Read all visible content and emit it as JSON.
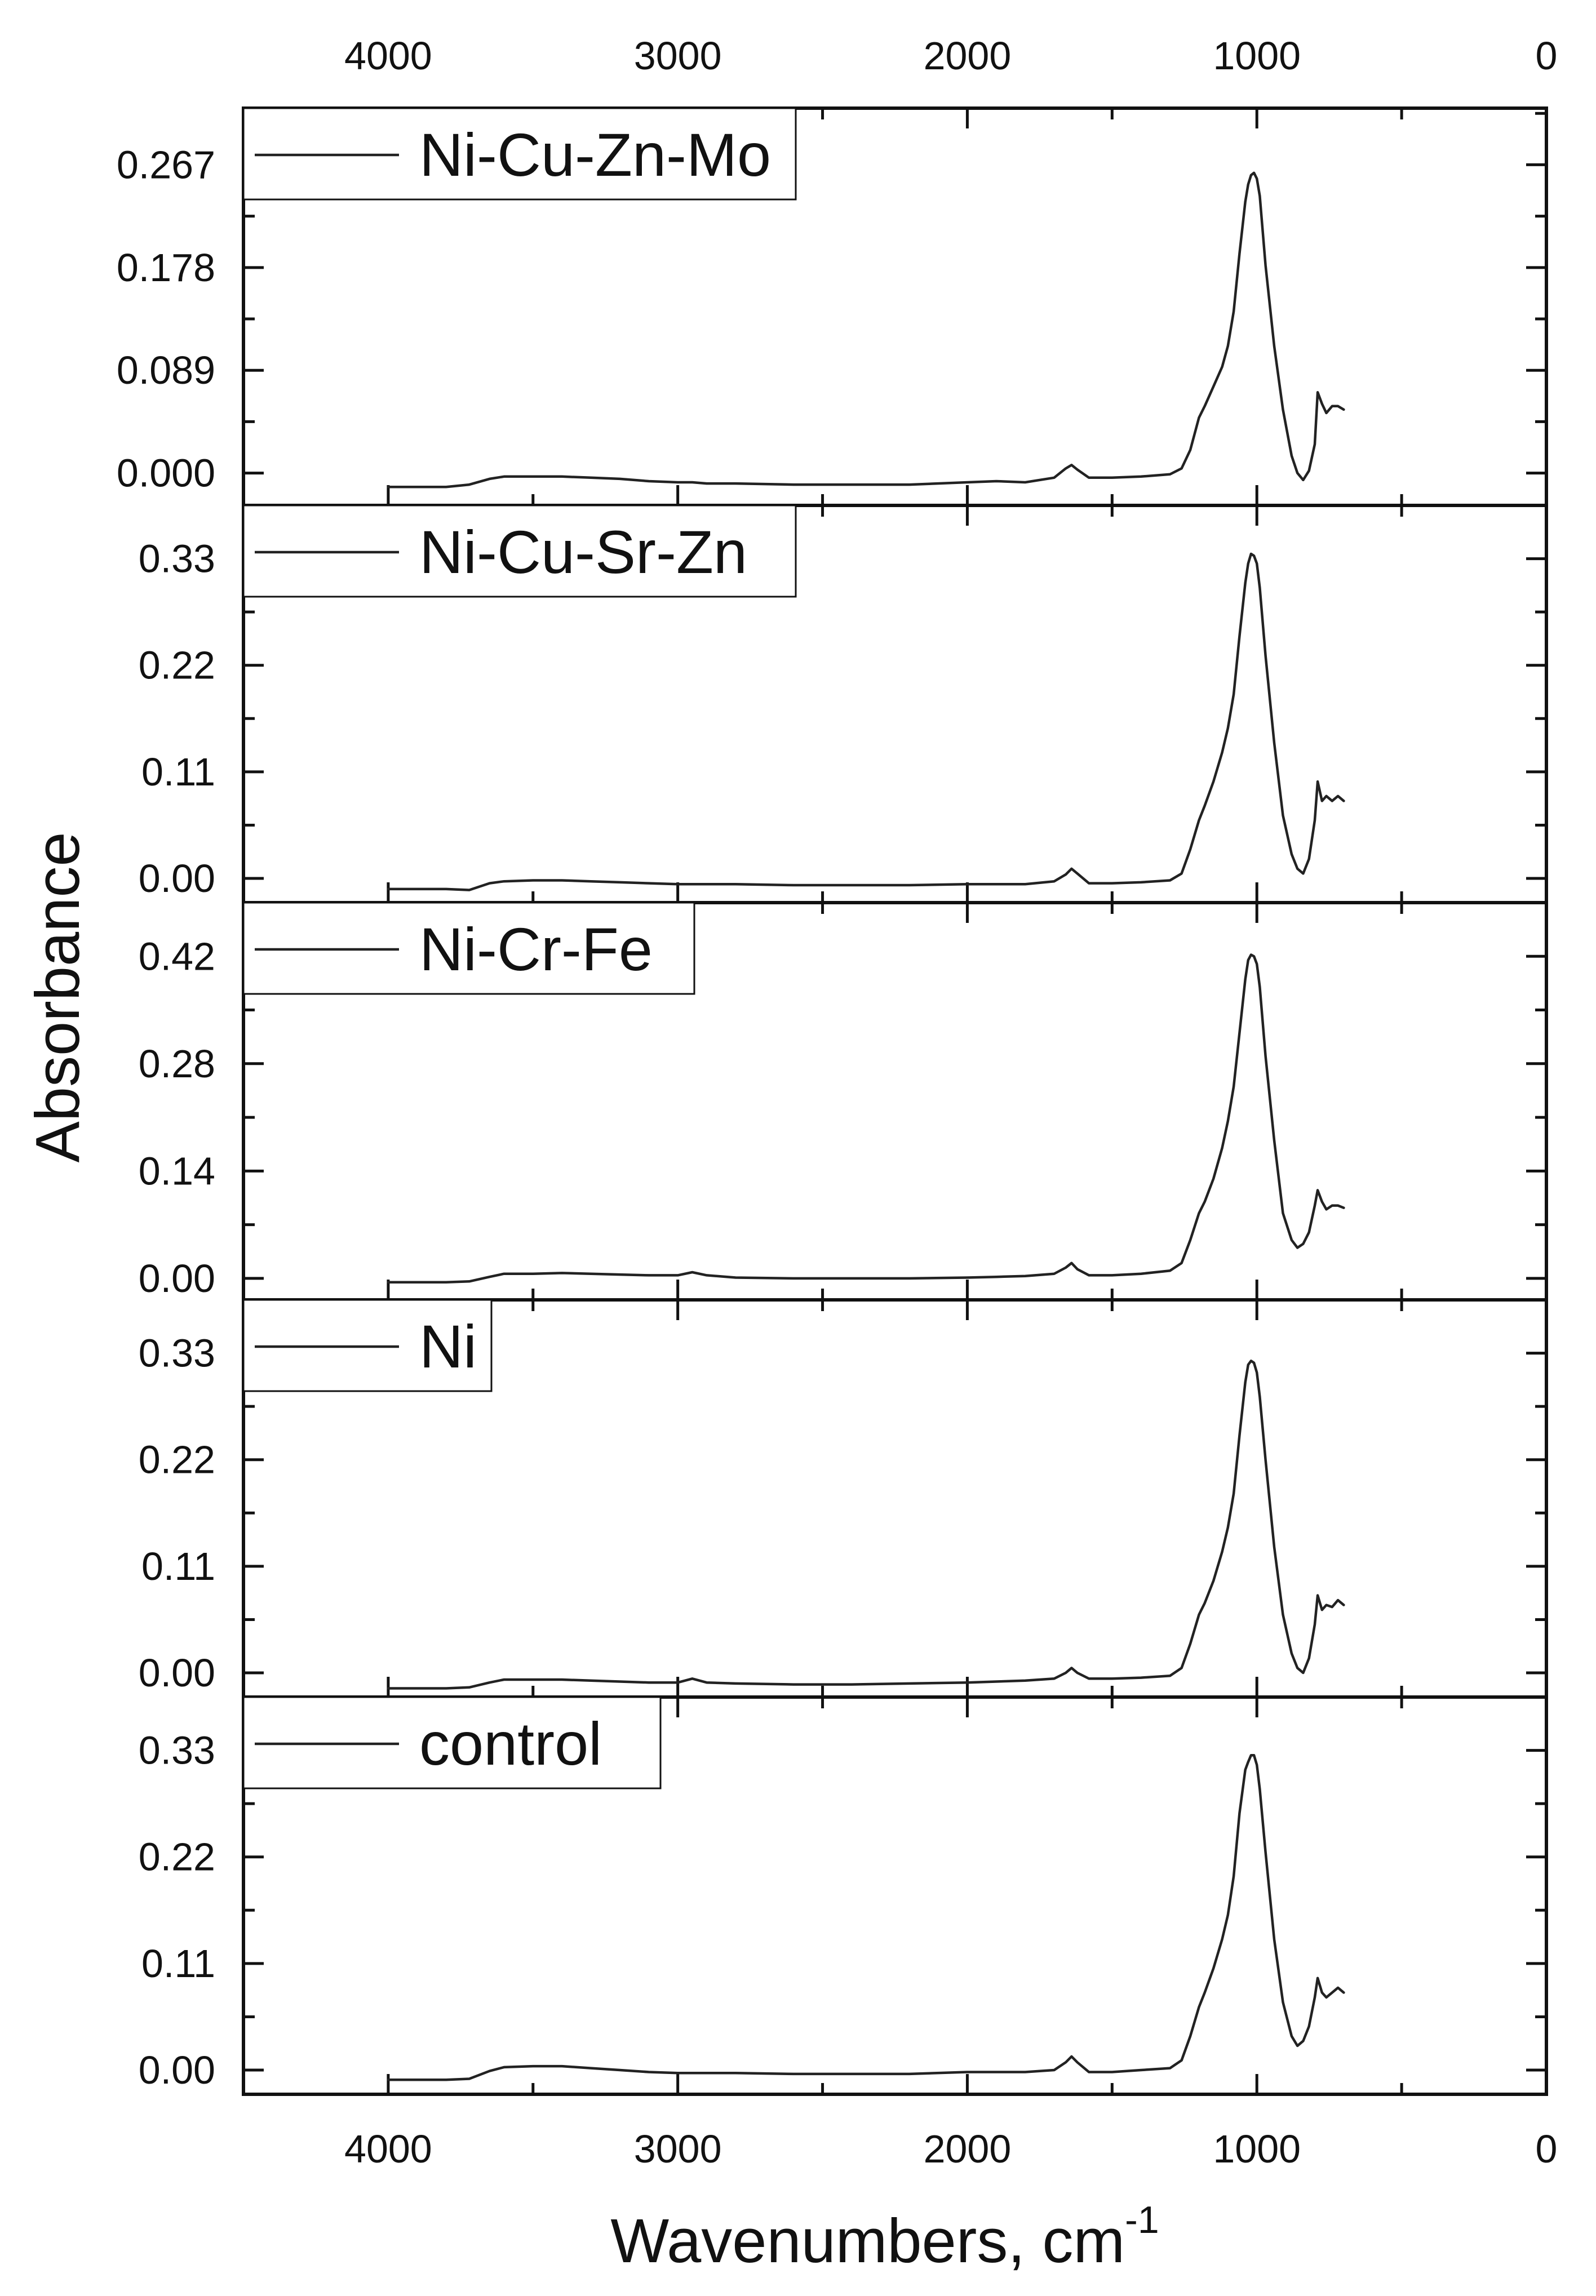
{
  "chart_data": {
    "type": "line",
    "layout": "stacked panels sharing x axis",
    "xlabel": "Wavenumbers, cm",
    "xlabel_superscript": "-1",
    "ylabel": "Absorbance",
    "xlim": [
      4500,
      0
    ],
    "x_reversed": true,
    "xticks": [
      4000,
      3000,
      2000,
      1000,
      0
    ],
    "x_minor_ticks": [
      4500,
      3500,
      2500,
      1500,
      500
    ],
    "xtick_labels": [
      "4000",
      "3000",
      "2000",
      "1000",
      "0"
    ],
    "x_ticks_on_top": true,
    "grid": false,
    "legend_placement": "top-left of each panel",
    "line_color": "#222222",
    "x": [
      4000,
      3900,
      3800,
      3720,
      3650,
      3600,
      3500,
      3400,
      3300,
      3200,
      3100,
      3000,
      2950,
      2900,
      2800,
      2600,
      2400,
      2200,
      2000,
      1900,
      1800,
      1700,
      1660,
      1640,
      1620,
      1580,
      1500,
      1400,
      1300,
      1260,
      1230,
      1200,
      1180,
      1150,
      1120,
      1100,
      1080,
      1060,
      1040,
      1030,
      1020,
      1010,
      1000,
      990,
      970,
      940,
      910,
      880,
      860,
      840,
      820,
      800,
      790,
      775,
      760,
      740,
      720,
      700
    ],
    "panels": [
      {
        "name": "Ni-Cu-Zn-Mo",
        "ylim": [
          -0.028,
          0.316
        ],
        "yticks": [
          0.0,
          0.089,
          0.178,
          0.267
        ],
        "ytick_labels": [
          "0.000",
          "0.089",
          "0.178",
          "0.267"
        ],
        "values": [
          -0.012,
          -0.012,
          -0.012,
          -0.01,
          -0.005,
          -0.003,
          -0.003,
          -0.003,
          -0.004,
          -0.005,
          -0.007,
          -0.008,
          -0.008,
          -0.009,
          -0.009,
          -0.01,
          -0.01,
          -0.01,
          -0.008,
          -0.007,
          -0.008,
          -0.004,
          0.004,
          0.007,
          0.003,
          -0.004,
          -0.004,
          -0.003,
          -0.001,
          0.004,
          0.02,
          0.048,
          0.058,
          0.075,
          0.092,
          0.11,
          0.14,
          0.19,
          0.235,
          0.25,
          0.258,
          0.26,
          0.255,
          0.24,
          0.18,
          0.11,
          0.055,
          0.015,
          0.0,
          -0.006,
          0.002,
          0.025,
          0.07,
          0.06,
          0.052,
          0.058,
          0.058,
          0.055
        ]
      },
      {
        "name": "Ni-Cu-Sr-Zn",
        "ylim": [
          -0.025,
          0.385
        ],
        "yticks": [
          0.0,
          0.11,
          0.22,
          0.33
        ],
        "ytick_labels": [
          "0.00",
          "0.11",
          "0.22",
          "0.33"
        ],
        "values": [
          -0.011,
          -0.011,
          -0.011,
          -0.012,
          -0.005,
          -0.003,
          -0.002,
          -0.002,
          -0.003,
          -0.004,
          -0.005,
          -0.006,
          -0.006,
          -0.006,
          -0.006,
          -0.007,
          -0.007,
          -0.007,
          -0.006,
          -0.006,
          -0.006,
          -0.003,
          0.004,
          0.01,
          0.005,
          -0.005,
          -0.005,
          -0.004,
          -0.002,
          0.005,
          0.03,
          0.06,
          0.075,
          0.1,
          0.13,
          0.155,
          0.19,
          0.25,
          0.305,
          0.325,
          0.335,
          0.333,
          0.325,
          0.3,
          0.23,
          0.14,
          0.065,
          0.025,
          0.01,
          0.005,
          0.02,
          0.06,
          0.1,
          0.08,
          0.085,
          0.08,
          0.085,
          0.08
        ]
      },
      {
        "name": "Ni-Cr-Fe",
        "ylim": [
          -0.028,
          0.49
        ],
        "yticks": [
          0.0,
          0.14,
          0.28,
          0.42
        ],
        "ytick_labels": [
          "0.00",
          "0.14",
          "0.28",
          "0.42"
        ],
        "values": [
          -0.005,
          -0.005,
          -0.005,
          -0.004,
          0.002,
          0.006,
          0.006,
          0.007,
          0.006,
          0.005,
          0.004,
          0.004,
          0.008,
          0.004,
          0.001,
          0.0,
          0.0,
          0.0,
          0.001,
          0.002,
          0.003,
          0.006,
          0.014,
          0.02,
          0.012,
          0.004,
          0.004,
          0.006,
          0.01,
          0.02,
          0.05,
          0.085,
          0.1,
          0.13,
          0.17,
          0.205,
          0.25,
          0.32,
          0.39,
          0.415,
          0.422,
          0.42,
          0.41,
          0.38,
          0.29,
          0.18,
          0.085,
          0.05,
          0.04,
          0.045,
          0.06,
          0.095,
          0.115,
          0.1,
          0.09,
          0.095,
          0.095,
          0.092
        ]
      },
      {
        "name": "Ni",
        "ylim": [
          -0.025,
          0.385
        ],
        "yticks": [
          0.0,
          0.11,
          0.22,
          0.33
        ],
        "ytick_labels": [
          "0.00",
          "0.11",
          "0.22",
          "0.33"
        ],
        "values": [
          -0.016,
          -0.016,
          -0.016,
          -0.015,
          -0.01,
          -0.007,
          -0.007,
          -0.007,
          -0.008,
          -0.009,
          -0.01,
          -0.01,
          -0.006,
          -0.01,
          -0.011,
          -0.012,
          -0.012,
          -0.011,
          -0.01,
          -0.009,
          -0.008,
          -0.006,
          0.0,
          0.005,
          0.0,
          -0.006,
          -0.006,
          -0.005,
          -0.003,
          0.005,
          0.03,
          0.06,
          0.072,
          0.095,
          0.125,
          0.15,
          0.185,
          0.245,
          0.3,
          0.318,
          0.322,
          0.32,
          0.31,
          0.285,
          0.22,
          0.13,
          0.06,
          0.02,
          0.005,
          0.0,
          0.015,
          0.05,
          0.08,
          0.065,
          0.07,
          0.068,
          0.075,
          0.07
        ]
      },
      {
        "name": "control",
        "ylim": [
          -0.025,
          0.385
        ],
        "yticks": [
          0.0,
          0.11,
          0.22,
          0.33
        ],
        "ytick_labels": [
          "0.00",
          "0.11",
          "0.22",
          "0.33"
        ],
        "values": [
          -0.01,
          -0.01,
          -0.01,
          -0.009,
          -0.001,
          0.003,
          0.004,
          0.004,
          0.002,
          0.0,
          -0.002,
          -0.003,
          -0.003,
          -0.003,
          -0.003,
          -0.004,
          -0.004,
          -0.004,
          -0.002,
          -0.002,
          -0.002,
          0.0,
          0.008,
          0.014,
          0.008,
          -0.002,
          -0.002,
          0.0,
          0.002,
          0.01,
          0.035,
          0.065,
          0.08,
          0.105,
          0.135,
          0.16,
          0.2,
          0.265,
          0.31,
          0.318,
          0.325,
          0.325,
          0.315,
          0.29,
          0.225,
          0.135,
          0.07,
          0.035,
          0.025,
          0.03,
          0.045,
          0.075,
          0.095,
          0.08,
          0.075,
          0.08,
          0.085,
          0.08
        ]
      }
    ]
  }
}
